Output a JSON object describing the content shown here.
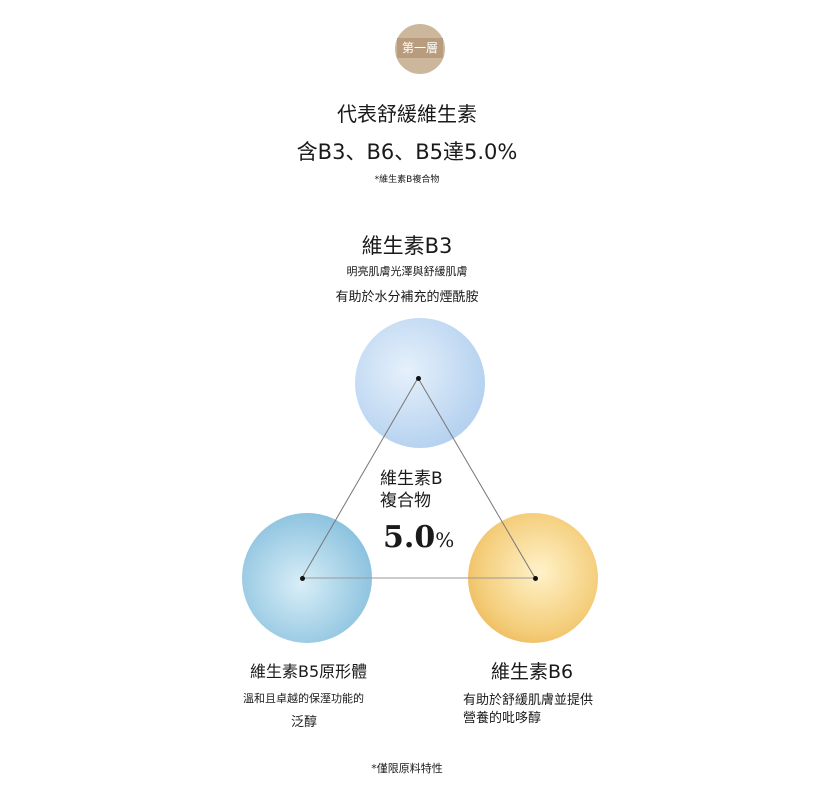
{
  "badge": {
    "label": "第一層",
    "color": "#cdb79c"
  },
  "headline": {
    "line1": "代表舒緩維生素",
    "line2": "含B3、B6、B5達5.0%",
    "note": "*維生素B複合物"
  },
  "b3": {
    "title": "維生素B3",
    "desc1": "明亮肌膚光澤與舒緩肌膚",
    "desc2": "有助於水分補充的煙酰胺"
  },
  "center": {
    "line1": "維生素B",
    "line2": "複合物",
    "value": "5.0",
    "unit": "%"
  },
  "b5": {
    "title": "維生素B5原形體",
    "desc1": "溫和且卓越的保溼功能的",
    "desc2": "泛醇"
  },
  "b6": {
    "title": "維生素B6",
    "desc1": "有助於舒緩肌膚並提供",
    "desc2": "營養的吡哆醇"
  },
  "footnote": "*僅限原料特性"
}
